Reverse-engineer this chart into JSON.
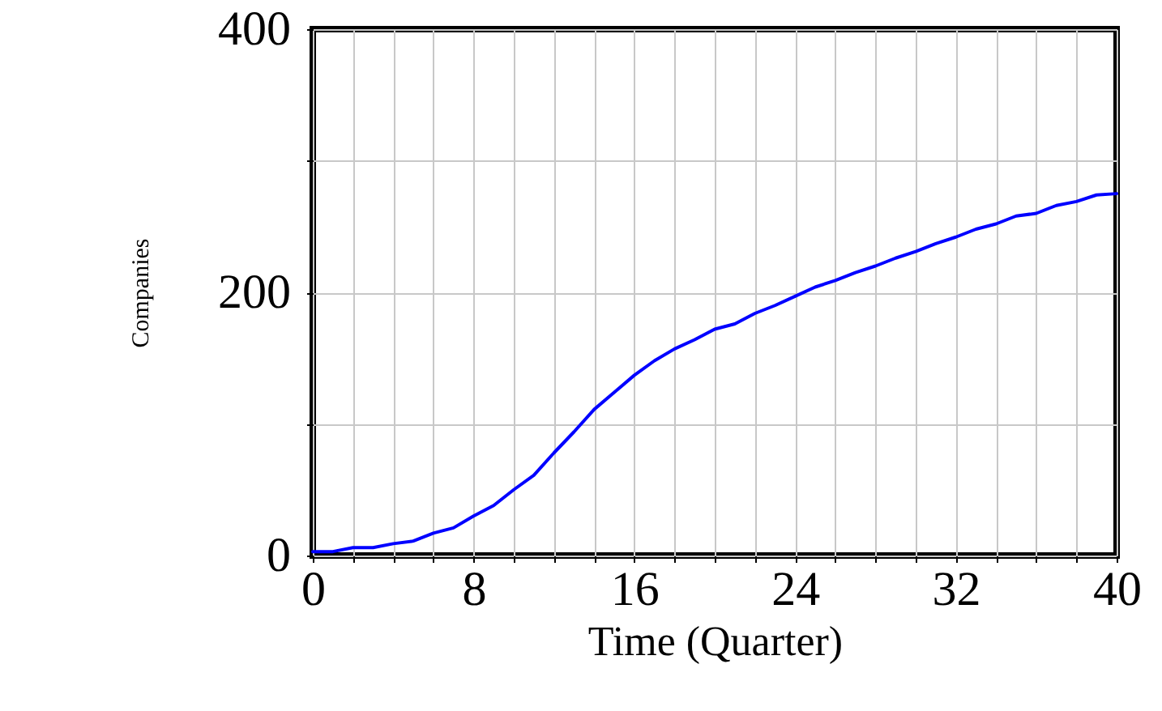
{
  "chart_data": {
    "type": "line",
    "xlabel": "Time (Quarter)",
    "ylabel": "Companies",
    "x": [
      0,
      1,
      2,
      3,
      4,
      5,
      6,
      7,
      8,
      9,
      10,
      11,
      12,
      13,
      14,
      15,
      16,
      17,
      18,
      19,
      20,
      21,
      22,
      23,
      24,
      25,
      26,
      27,
      28,
      29,
      30,
      31,
      32,
      33,
      34,
      35,
      36,
      37,
      38,
      39,
      40
    ],
    "series": [
      {
        "color": "#0000ff",
        "values": [
          3,
          3,
          6,
          6,
          9,
          11,
          17,
          21,
          30,
          38,
          50,
          61,
          78,
          94,
          111,
          124,
          137,
          148,
          157,
          164,
          172,
          176,
          184,
          190,
          197,
          204,
          209,
          215,
          220,
          226,
          231,
          237,
          242,
          248,
          252,
          258,
          260,
          266,
          269,
          274,
          275
        ]
      }
    ],
    "xlim": [
      0,
      40
    ],
    "xticks": [
      0,
      {
        "value": 2,
        "label": null
      },
      {
        "value": 4,
        "label": null
      },
      {
        "value": 6,
        "label": null
      },
      8,
      {
        "value": 10,
        "label": null
      },
      {
        "value": 12,
        "label": null
      },
      {
        "value": 14,
        "label": null
      },
      16,
      {
        "value": 18,
        "label": null
      },
      {
        "value": 20,
        "label": null
      },
      {
        "value": 22,
        "label": null
      },
      24,
      {
        "value": 26,
        "label": null
      },
      {
        "value": 28,
        "label": null
      },
      {
        "value": 30,
        "label": null
      },
      32,
      {
        "value": 34,
        "label": null
      },
      {
        "value": 36,
        "label": null
      },
      {
        "value": 38,
        "label": null
      },
      40
    ],
    "ylim": [
      0,
      400
    ],
    "yticks": [
      0,
      {
        "value": 100,
        "label": null
      },
      200,
      {
        "value": 300,
        "label": null
      },
      400
    ],
    "grid": true,
    "marker": "none",
    "line_style": "solid"
  }
}
